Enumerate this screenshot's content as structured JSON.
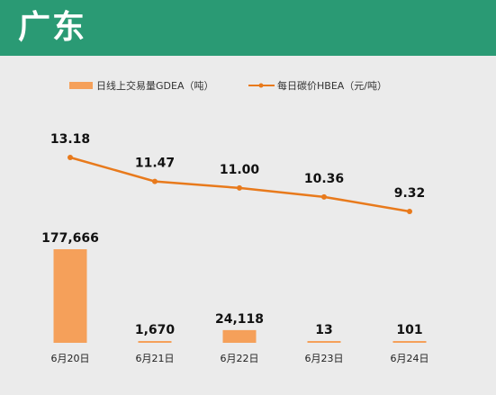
{
  "header": {
    "title": "广东"
  },
  "colors": {
    "header_bg": "#2a9a74",
    "bar": "#f5a05a",
    "line": "#e87a1c",
    "background": "#ebebeb"
  },
  "chart_data": {
    "type": "bar+line",
    "categories": [
      "6月20日",
      "6月21日",
      "6月22日",
      "6月23日",
      "6月24日"
    ],
    "series": [
      {
        "name": "日线上交易量GDEA（吨）",
        "type": "bar",
        "values": [
          177666,
          1670,
          24118,
          13,
          101
        ],
        "labels": [
          "177,666",
          "1,670",
          "24,118",
          "13",
          "101"
        ]
      },
      {
        "name": "每日碳价HBEA（元/吨）",
        "type": "line",
        "values": [
          13.18,
          11.47,
          11.0,
          10.36,
          9.32
        ],
        "labels": [
          "13.18",
          "11.47",
          "11.00",
          "10.36",
          "9.32"
        ]
      }
    ],
    "legend": "top",
    "grid": false
  }
}
